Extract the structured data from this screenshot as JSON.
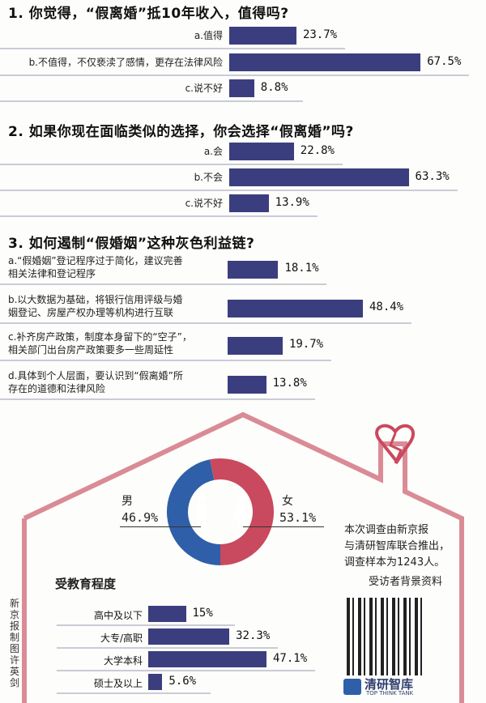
{
  "colors": {
    "bar": "#3b3e7e",
    "male": "#2f5fa8",
    "female": "#c9495e",
    "house": "#d98b96"
  },
  "chart_data": [
    {
      "type": "bar",
      "title": "1. 你觉得，“假离婚”抵10年收入，值得吗?",
      "categories": [
        "a.值得",
        "b.不值得，不仅亵渎了感情，更存在法律风险",
        "c.说不好"
      ],
      "values": [
        23.7,
        67.5,
        8.8
      ],
      "value_labels": [
        "23.7%",
        "67.5%",
        "8.8%"
      ]
    },
    {
      "type": "bar",
      "title": "2. 如果你现在面临类似的选择，你会选择“假离婚”吗?",
      "categories": [
        "a.会",
        "b.不会",
        "c.说不好"
      ],
      "values": [
        22.8,
        63.3,
        13.9
      ],
      "value_labels": [
        "22.8%",
        "63.3%",
        "13.9%"
      ]
    },
    {
      "type": "bar",
      "title": "3. 如何遏制“假婚姻”这种灰色利益链?",
      "categories": [
        [
          "a.“假婚姻”登记程序过于简化，建议完善",
          "相关法律和登记程序"
        ],
        [
          "b.以大数据为基础，将银行信用评级与婚",
          "姻登记、房屋产权办理等机构进行互联"
        ],
        [
          "c.补齐房产政策，制度本身留下的“空子”，",
          "相关部门出台房产政策要多一些周延性"
        ],
        [
          "d.具体到个人层面，要认识到“假离婚”所",
          "存在的道德和法律风险"
        ]
      ],
      "values": [
        18.1,
        48.4,
        19.7,
        13.8
      ],
      "value_labels": [
        "18.1%",
        "48.4%",
        "19.7%",
        "13.8%"
      ]
    },
    {
      "type": "pie",
      "categories": [
        "男",
        "女"
      ],
      "values": [
        46.9,
        53.1
      ],
      "value_labels": [
        "46.9%",
        "53.1%"
      ]
    },
    {
      "type": "bar",
      "title": "受教育程度",
      "categories": [
        "高中及以下",
        "大专/高职",
        "大学本科",
        "硕士及以上"
      ],
      "values": [
        15,
        32.3,
        47.1,
        5.6
      ],
      "value_labels": [
        "15%",
        "32.3%",
        "47.1%",
        "5.6%"
      ]
    }
  ],
  "note": [
    "本次调查由新京报",
    "与清研智库联合推出，",
    "调查样本为1243人。"
  ],
  "background_label": "受访者背景资料",
  "credit": "新京报制图 许英剑",
  "logo_text": "清研智库",
  "logo_subtext": "TOP THINK TANK"
}
